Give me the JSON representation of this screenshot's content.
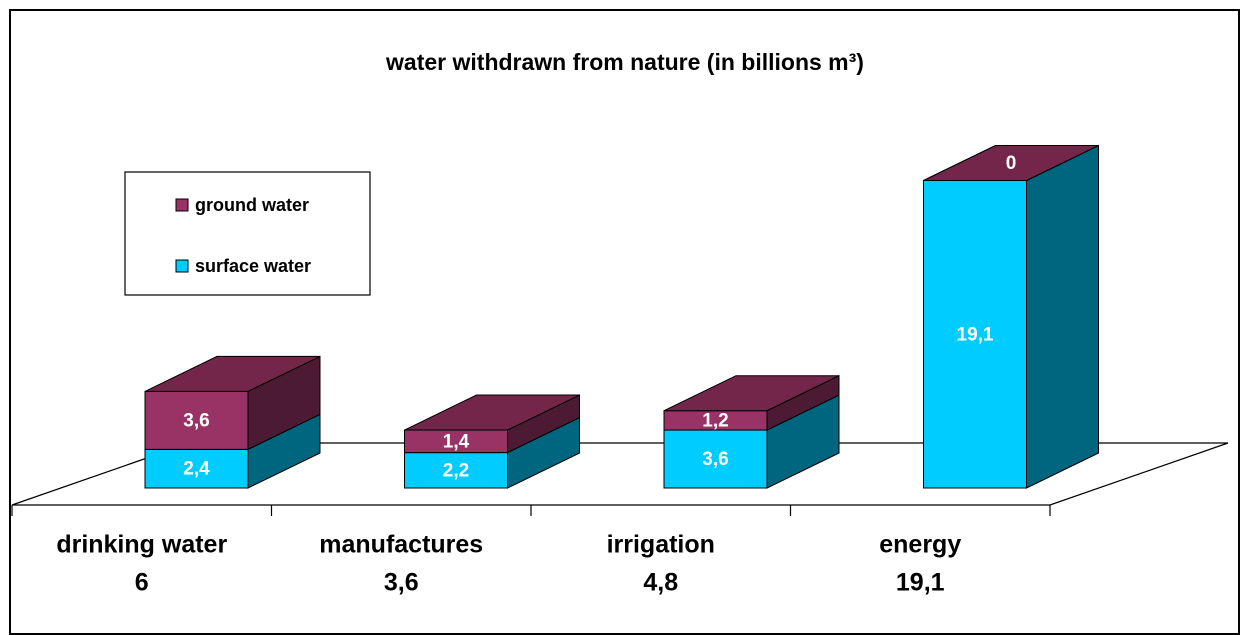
{
  "chart_data": {
    "type": "bar3d_stacked",
    "title": "water withdrawn from nature  (in billions m³)",
    "categories": [
      "drinking water",
      "manufactures",
      "irrigation",
      "energy"
    ],
    "totals": [
      6,
      3.6,
      4.8,
      19.1
    ],
    "total_labels": [
      "6",
      "3,6",
      "4,8",
      "19,1"
    ],
    "series": [
      {
        "name": "surface water",
        "color": "#00ccff",
        "side_color": "#006680",
        "top_color": "#33d6ff",
        "values": [
          2.4,
          2.2,
          3.6,
          19.1
        ],
        "value_labels": [
          "2,4",
          "2,2",
          "3,6",
          "19,1"
        ]
      },
      {
        "name": "ground water",
        "color": "#993366",
        "side_color": "#4d1a33",
        "top_color": "#732649",
        "values": [
          3.6,
          1.4,
          1.2,
          0
        ],
        "value_labels": [
          "3,6",
          "1,4",
          "1,2",
          "0"
        ]
      }
    ],
    "ylim": [
      0,
      20
    ]
  }
}
